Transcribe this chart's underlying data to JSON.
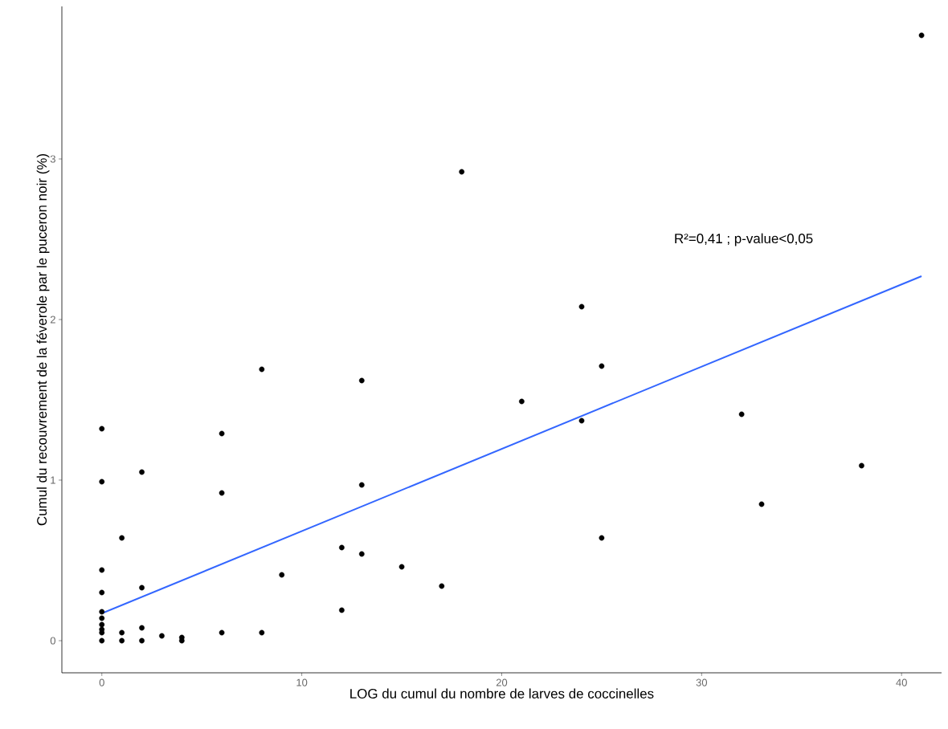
{
  "chart_data": {
    "type": "scatter",
    "xlabel": "LOG du cumul du nombre de larves de coccinelles",
    "ylabel": "Cumul du recouvrement de la féverole par le puceron noir (%)",
    "xlim": [
      -2,
      42
    ],
    "ylim": [
      -0.2,
      3.95
    ],
    "xticks": [
      0,
      10,
      20,
      30,
      40
    ],
    "yticks": [
      0,
      1,
      2,
      3
    ],
    "grid": false,
    "annotations": [
      "R²=0,41 ; p-value<0,05"
    ],
    "series": [
      {
        "marker": "circle",
        "color": "#000000",
        "x": [
          0,
          0,
          0,
          0,
          0,
          0,
          0,
          0,
          0,
          0,
          1,
          1,
          1,
          2,
          2,
          2,
          2,
          3,
          4,
          4,
          6,
          6,
          6,
          8,
          8,
          9,
          12,
          12,
          13,
          13,
          13,
          15,
          17,
          18,
          21,
          24,
          24,
          25,
          25,
          32,
          33,
          38,
          41
        ],
        "values": [
          1.32,
          0.99,
          0.44,
          0.3,
          0.18,
          0.14,
          0.1,
          0.07,
          0.05,
          0,
          0.64,
          0.05,
          0,
          1.05,
          0.33,
          0.08,
          0,
          0.03,
          0.02,
          0,
          1.29,
          0.92,
          0.05,
          1.69,
          0.05,
          0.41,
          0.58,
          0.19,
          1.62,
          0.97,
          0.54,
          0.46,
          0.34,
          2.92,
          1.49,
          2.08,
          1.37,
          1.71,
          0.64,
          1.41,
          0.85,
          1.09,
          3.77
        ]
      },
      {
        "type": "line",
        "color": "#3366ff",
        "x": [
          0,
          41
        ],
        "values": [
          0.17,
          2.27
        ]
      }
    ]
  }
}
